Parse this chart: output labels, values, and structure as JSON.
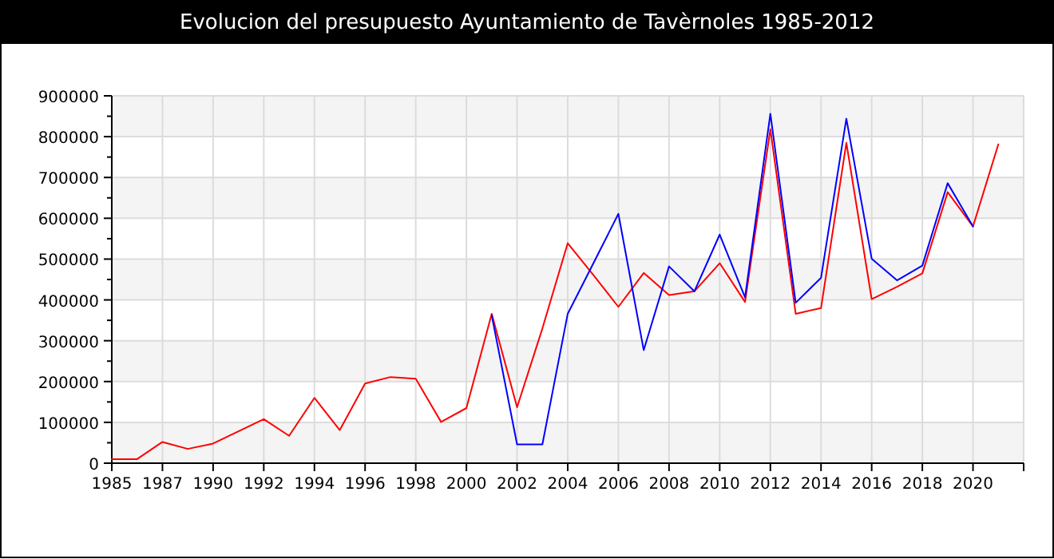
{
  "chart_data": {
    "type": "line",
    "title": "Evolucion del presupuesto Ayuntamiento de Tavèrnoles 1985-2012",
    "categories": [
      "1985",
      null,
      "1987",
      null,
      "1990",
      null,
      "1992",
      null,
      "1994",
      null,
      "1996",
      null,
      "1998",
      null,
      "2000",
      null,
      "2002",
      null,
      "2004",
      null,
      "2006",
      null,
      "2008",
      null,
      "2010",
      null,
      "2012",
      null,
      "2014",
      null,
      "2016",
      null,
      "2018",
      null,
      "2020",
      null,
      null
    ],
    "series": [
      {
        "color": "#ff0000",
        "values": [
          10000,
          10000,
          52000,
          35000,
          48000,
          78000,
          108000,
          67000,
          160000,
          81000,
          195000,
          211000,
          207000,
          101000,
          135000,
          366000,
          137000,
          330000,
          539000,
          462000,
          383000,
          466000,
          412000,
          421000,
          490000,
          395000,
          818000,
          366000,
          380000,
          785000,
          402000,
          432000,
          465000,
          664000,
          580000,
          781000,
          null
        ]
      },
      {
        "color": "#0000ff",
        "values": [
          null,
          null,
          null,
          null,
          null,
          null,
          null,
          null,
          null,
          null,
          null,
          null,
          null,
          null,
          null,
          362000,
          46000,
          46000,
          366000,
          488000,
          611000,
          277000,
          482000,
          421000,
          560000,
          406000,
          856000,
          393000,
          454000,
          844000,
          501000,
          448000,
          484000,
          686000,
          580000,
          null,
          null
        ]
      }
    ],
    "ylim": [
      0,
      900000
    ],
    "yticks": [
      0,
      {
        "value": 50000,
        "label": null
      },
      100000,
      {
        "value": 150000,
        "label": null
      },
      200000,
      {
        "value": 250000,
        "label": null
      },
      300000,
      {
        "value": 350000,
        "label": null
      },
      400000,
      {
        "value": 450000,
        "label": null
      },
      500000,
      {
        "value": 550000,
        "label": null
      },
      600000,
      {
        "value": 650000,
        "label": null
      },
      700000,
      {
        "value": 750000,
        "label": null
      },
      800000,
      {
        "value": 850000,
        "label": null
      },
      900000
    ],
    "grid": true
  }
}
